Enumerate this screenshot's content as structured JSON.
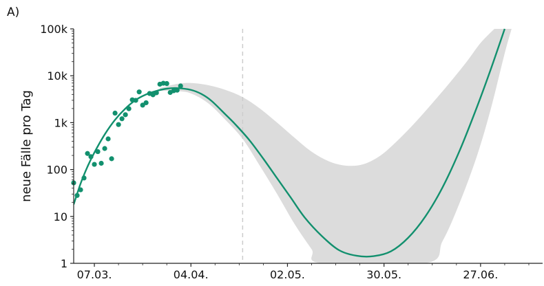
{
  "panel_label": "A)",
  "chart_data": {
    "type": "scatter",
    "ylabel": "neue Fälle pro Tag",
    "yscale": "log",
    "ylim": [
      1,
      100000
    ],
    "y_ticks": [
      {
        "value": 1,
        "label": "1"
      },
      {
        "value": 10,
        "label": "10"
      },
      {
        "value": 100,
        "label": "100"
      },
      {
        "value": 1000,
        "label": "1k"
      },
      {
        "value": 10000,
        "label": "10k"
      },
      {
        "value": 100000,
        "label": "100k"
      }
    ],
    "xlim": [
      "2020-03-01",
      "2020-07-15"
    ],
    "x_ticks": [
      {
        "value": "2020-03-07",
        "label": "07.03."
      },
      {
        "value": "2020-04-04",
        "label": "04.04."
      },
      {
        "value": "2020-05-02",
        "label": "02.05."
      },
      {
        "value": "2020-05-30",
        "label": "30.05."
      },
      {
        "value": "2020-06-27",
        "label": "27.06."
      }
    ],
    "forecast_start": "2020-04-19",
    "colors": {
      "observed": "#12906e",
      "fit": "#12906e",
      "band": "#dcdcdc",
      "forecast_line": "#cccccc"
    },
    "observed": [
      {
        "x": "2020-03-01",
        "y": 52
      },
      {
        "x": "2020-03-02",
        "y": 28
      },
      {
        "x": "2020-03-03",
        "y": 37
      },
      {
        "x": "2020-03-04",
        "y": 66
      },
      {
        "x": "2020-03-05",
        "y": 220
      },
      {
        "x": "2020-03-06",
        "y": 188
      },
      {
        "x": "2020-03-07",
        "y": 129
      },
      {
        "x": "2020-03-08",
        "y": 241
      },
      {
        "x": "2020-03-09",
        "y": 136
      },
      {
        "x": "2020-03-10",
        "y": 281
      },
      {
        "x": "2020-03-11",
        "y": 451
      },
      {
        "x": "2020-03-12",
        "y": 170
      },
      {
        "x": "2020-03-13",
        "y": 1597
      },
      {
        "x": "2020-03-14",
        "y": 910
      },
      {
        "x": "2020-03-15",
        "y": 1210
      },
      {
        "x": "2020-03-16",
        "y": 1477
      },
      {
        "x": "2020-03-17",
        "y": 1985
      },
      {
        "x": "2020-03-18",
        "y": 3070
      },
      {
        "x": "2020-03-19",
        "y": 2990
      },
      {
        "x": "2020-03-20",
        "y": 4528
      },
      {
        "x": "2020-03-21",
        "y": 2365
      },
      {
        "x": "2020-03-22",
        "y": 2660
      },
      {
        "x": "2020-03-23",
        "y": 4183
      },
      {
        "x": "2020-03-24",
        "y": 3930
      },
      {
        "x": "2020-03-25",
        "y": 4337
      },
      {
        "x": "2020-03-26",
        "y": 6615
      },
      {
        "x": "2020-03-27",
        "y": 6933
      },
      {
        "x": "2020-03-28",
        "y": 6824
      },
      {
        "x": "2020-03-29",
        "y": 4400
      },
      {
        "x": "2020-03-30",
        "y": 4790
      },
      {
        "x": "2020-03-31",
        "y": 4923
      },
      {
        "x": "2020-04-01",
        "y": 6064
      }
    ],
    "fit_line": [
      {
        "x": "2020-03-01",
        "y": 18
      },
      {
        "x": "2020-03-03",
        "y": 50
      },
      {
        "x": "2020-03-05",
        "y": 115
      },
      {
        "x": "2020-03-07",
        "y": 230
      },
      {
        "x": "2020-03-10",
        "y": 560
      },
      {
        "x": "2020-03-13",
        "y": 1150
      },
      {
        "x": "2020-03-16",
        "y": 2000
      },
      {
        "x": "2020-03-19",
        "y": 3050
      },
      {
        "x": "2020-03-22",
        "y": 4000
      },
      {
        "x": "2020-03-25",
        "y": 4750
      },
      {
        "x": "2020-03-28",
        "y": 5300
      },
      {
        "x": "2020-03-31",
        "y": 5450
      },
      {
        "x": "2020-04-04",
        "y": 5000
      },
      {
        "x": "2020-04-07",
        "y": 4100
      },
      {
        "x": "2020-04-10",
        "y": 2900
      },
      {
        "x": "2020-04-14",
        "y": 1500
      },
      {
        "x": "2020-04-17",
        "y": 900
      },
      {
        "x": "2020-04-21",
        "y": 420
      },
      {
        "x": "2020-04-25",
        "y": 170
      },
      {
        "x": "2020-04-29",
        "y": 65
      },
      {
        "x": "2020-05-03",
        "y": 25
      },
      {
        "x": "2020-05-07",
        "y": 9.5
      },
      {
        "x": "2020-05-12",
        "y": 3.8
      },
      {
        "x": "2020-05-17",
        "y": 1.9
      },
      {
        "x": "2020-05-22",
        "y": 1.45
      },
      {
        "x": "2020-05-27",
        "y": 1.42
      },
      {
        "x": "2020-06-01",
        "y": 1.8
      },
      {
        "x": "2020-06-06",
        "y": 3.5
      },
      {
        "x": "2020-06-11",
        "y": 10
      },
      {
        "x": "2020-06-16",
        "y": 42
      },
      {
        "x": "2020-06-21",
        "y": 260
      },
      {
        "x": "2020-06-26",
        "y": 2200
      },
      {
        "x": "2020-06-30",
        "y": 14000
      },
      {
        "x": "2020-07-04",
        "y": 100000
      }
    ],
    "band_upper": [
      {
        "x": "2020-03-26",
        "y": 5500
      },
      {
        "x": "2020-03-31",
        "y": 6700
      },
      {
        "x": "2020-04-04",
        "y": 7000
      },
      {
        "x": "2020-04-09",
        "y": 6300
      },
      {
        "x": "2020-04-14",
        "y": 5000
      },
      {
        "x": "2020-04-19",
        "y": 3500
      },
      {
        "x": "2020-04-24",
        "y": 2000
      },
      {
        "x": "2020-04-29",
        "y": 1000
      },
      {
        "x": "2020-05-04",
        "y": 480
      },
      {
        "x": "2020-05-09",
        "y": 240
      },
      {
        "x": "2020-05-14",
        "y": 150
      },
      {
        "x": "2020-05-19",
        "y": 121
      },
      {
        "x": "2020-05-24",
        "y": 130
      },
      {
        "x": "2020-05-29",
        "y": 200
      },
      {
        "x": "2020-06-03",
        "y": 420
      },
      {
        "x": "2020-06-08",
        "y": 1000
      },
      {
        "x": "2020-06-13",
        "y": 2600
      },
      {
        "x": "2020-06-18",
        "y": 7000
      },
      {
        "x": "2020-06-23",
        "y": 20000
      },
      {
        "x": "2020-06-27",
        "y": 50000
      },
      {
        "x": "2020-07-01",
        "y": 100000
      }
    ],
    "band_lower": [
      {
        "x": "2020-03-26",
        "y": 4800
      },
      {
        "x": "2020-03-31",
        "y": 4700
      },
      {
        "x": "2020-04-04",
        "y": 4200
      },
      {
        "x": "2020-04-09",
        "y": 2600
      },
      {
        "x": "2020-04-14",
        "y": 1150
      },
      {
        "x": "2020-04-19",
        "y": 450
      },
      {
        "x": "2020-04-24",
        "y": 120
      },
      {
        "x": "2020-04-29",
        "y": 30
      },
      {
        "x": "2020-05-04",
        "y": 7
      },
      {
        "x": "2020-05-09",
        "y": 2
      },
      {
        "x": "2020-05-12",
        "y": 1
      },
      {
        "x": "2020-06-11",
        "y": 1
      },
      {
        "x": "2020-06-16",
        "y": 3
      },
      {
        "x": "2020-06-21",
        "y": 20
      },
      {
        "x": "2020-06-26",
        "y": 200
      },
      {
        "x": "2020-06-30",
        "y": 2000
      },
      {
        "x": "2020-07-04",
        "y": 30000
      },
      {
        "x": "2020-07-06",
        "y": 100000
      }
    ]
  }
}
